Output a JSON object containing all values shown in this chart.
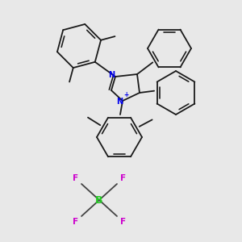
{
  "bg": "#e8e8e8",
  "bond_color": "#1a1a1a",
  "N_color": "#0000ee",
  "B_color": "#22cc22",
  "F_color": "#cc00cc",
  "figsize": [
    3.0,
    3.0
  ],
  "dpi": 100,
  "xlim": [
    0,
    300
  ],
  "ylim": [
    0,
    300
  ]
}
